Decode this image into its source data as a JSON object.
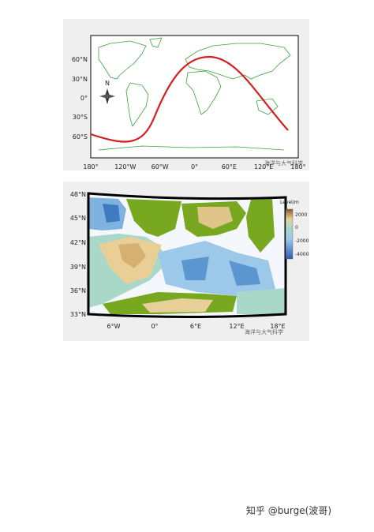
{
  "figure_top": {
    "lat_labels": [
      "60°N",
      "30°N",
      "0°",
      "30°S",
      "60°S"
    ],
    "lon_labels": [
      "180°",
      "120°W",
      "60°W",
      "0°",
      "60°E",
      "120°E",
      "180°"
    ],
    "compass": "N",
    "watermark": "海洋与大气科学"
  },
  "figure_bottom": {
    "lat_labels": [
      "48°N",
      "45°N",
      "42°N",
      "39°N",
      "36°N",
      "33°N"
    ],
    "lon_labels": [
      "6°W",
      "0°",
      "6°E",
      "12°E",
      "18°E"
    ],
    "colorbar_title": "Level/m",
    "colorbar_ticks": [
      "2000",
      "0",
      "-2000",
      "-4000"
    ],
    "watermark": "海洋与大气科学"
  },
  "footer": "知乎 @burge(波哥)"
}
